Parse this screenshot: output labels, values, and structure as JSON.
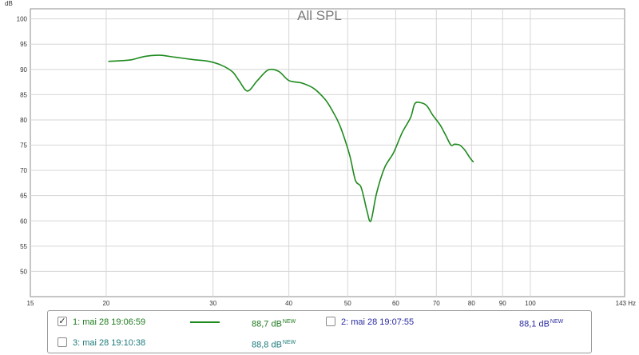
{
  "chart_data": {
    "type": "line",
    "title": "All SPL",
    "ylabel": "dB",
    "xunit": "Hz",
    "xscale": "log",
    "xlim": [
      15,
      143
    ],
    "ylim": [
      45,
      102
    ],
    "xticks": [
      15,
      20,
      30,
      40,
      50,
      60,
      70,
      80,
      90,
      100,
      143
    ],
    "xtick_labels": [
      "15",
      "20",
      "30",
      "40",
      "50",
      "60",
      "70",
      "80",
      "90",
      "100",
      "143 Hz"
    ],
    "yticks": [
      50,
      55,
      60,
      65,
      70,
      75,
      80,
      85,
      90,
      95,
      100
    ],
    "grid": true,
    "series": [
      {
        "name": "1: mai 28 19:06:59",
        "color": "#1e8a1e",
        "x": [
          20.2,
          21.0,
          22.0,
          23.2,
          24.5,
          26.0,
          28.0,
          29.5,
          31.0,
          32.3,
          33.1,
          34.2,
          35.5,
          37.0,
          38.5,
          40.0,
          42.0,
          44.0,
          46.0,
          47.5,
          48.5,
          49.5,
          50.5,
          51.5,
          52.5,
          53.2,
          53.8,
          54.6,
          55.8,
          57.5,
          59.5,
          61.5,
          63.5,
          64.5,
          66.0,
          67.5,
          69.0,
          71.0,
          72.5,
          74.0,
          75.0,
          76.5,
          78.0,
          79.5,
          80.5
        ],
        "y": [
          91.6,
          91.7,
          91.9,
          92.6,
          92.8,
          92.4,
          91.9,
          91.6,
          90.8,
          89.5,
          87.8,
          85.7,
          87.8,
          89.9,
          89.6,
          87.8,
          87.3,
          86.2,
          83.9,
          81.2,
          79.0,
          76.0,
          72.5,
          68.0,
          66.9,
          64.5,
          62.0,
          60.0,
          65.5,
          70.5,
          73.5,
          77.5,
          80.5,
          83.2,
          83.4,
          82.8,
          81.0,
          79.0,
          77.0,
          75.0,
          75.2,
          75.0,
          74.0,
          72.5,
          71.7
        ]
      }
    ]
  },
  "legend": {
    "items": [
      {
        "label": "1: mai 28 19:06:59",
        "value": "88,7 dB",
        "badge": "NEW",
        "checked": true,
        "check_mark": "✓",
        "show_line": true,
        "color": "#1e7a1e",
        "value_color": "#1e7a1e",
        "line_color": "#1e8a1e"
      },
      {
        "label": "2: mai 28 19:07:55",
        "value": "88,1 dB",
        "badge": "NEW",
        "checked": false,
        "check_mark": "",
        "show_line": false,
        "color": "#2a2aa0",
        "value_color": "#2a2aa0"
      },
      {
        "label": "3: mai 28 19:10:38",
        "value": "88,8 dB",
        "badge": "NEW",
        "checked": false,
        "check_mark": "",
        "show_line": false,
        "color": "#1e7a7a",
        "value_color": "#1e7a7a"
      }
    ]
  }
}
